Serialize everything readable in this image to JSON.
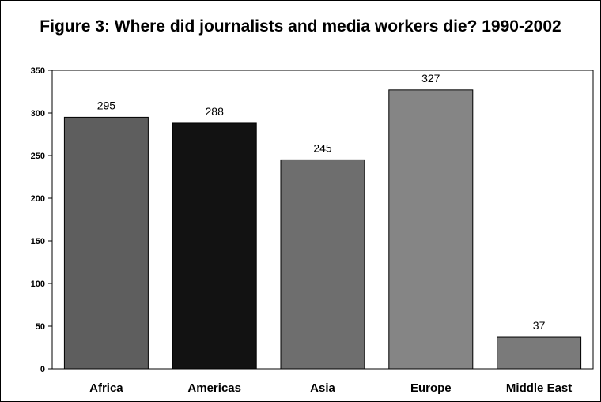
{
  "chart_data": {
    "type": "bar",
    "title": "Figure 3:  Where did journalists and media workers die? 1990-2002",
    "categories": [
      "Africa",
      "Americas",
      "Asia",
      "Europe",
      "Middle East"
    ],
    "values": [
      295,
      288,
      245,
      327,
      37
    ],
    "data_labels": [
      "295",
      "288",
      "245",
      "327",
      "37"
    ],
    "colors": [
      "#5e5e5e",
      "#121212",
      "#6e6e6e",
      "#858585",
      "#7a7a7a"
    ],
    "ylim": [
      0,
      350
    ],
    "yticks": [
      0,
      50,
      100,
      150,
      200,
      250,
      300,
      350
    ],
    "ytick_labels": [
      "0",
      "50",
      "100",
      "150",
      "200",
      "250",
      "300",
      "350"
    ],
    "xlabel": "",
    "ylabel": "",
    "grid": false,
    "legend": "none"
  }
}
